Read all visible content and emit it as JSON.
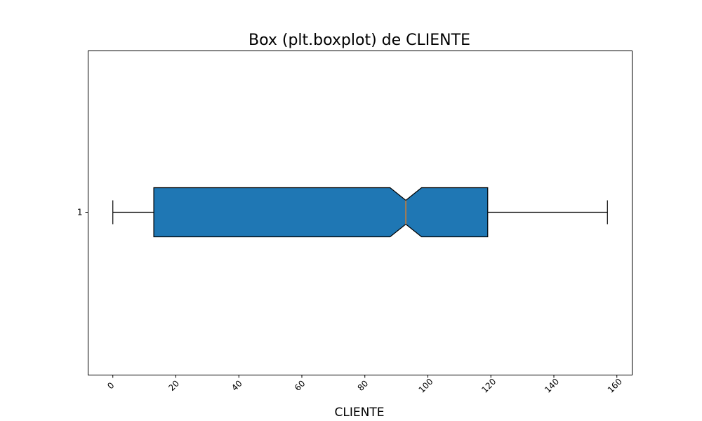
{
  "chart_data": {
    "type": "boxplot",
    "title": "Box (plt.boxplot) de CLIENTE",
    "xlabel": "CLIENTE",
    "ylabel": "",
    "orientation": "horizontal",
    "notched": true,
    "xlim": [
      -7.85,
      164.85
    ],
    "x_ticks": [
      0,
      20,
      40,
      60,
      80,
      100,
      120,
      140,
      160
    ],
    "x_tick_labels": [
      "0",
      "20",
      "40",
      "60",
      "80",
      "100",
      "120",
      "140",
      "160"
    ],
    "x_tick_rotation": 45,
    "y_tick_labels": [
      "1"
    ],
    "series": [
      {
        "name": "1",
        "whisker_low": 0,
        "q1": 13,
        "median": 93,
        "q3": 119,
        "whisker_high": 157,
        "notch_low": 88,
        "notch_high": 98
      }
    ],
    "box_color": "#1f77b4",
    "median_color": "#ff7f0e",
    "edge_color": "#000000"
  }
}
